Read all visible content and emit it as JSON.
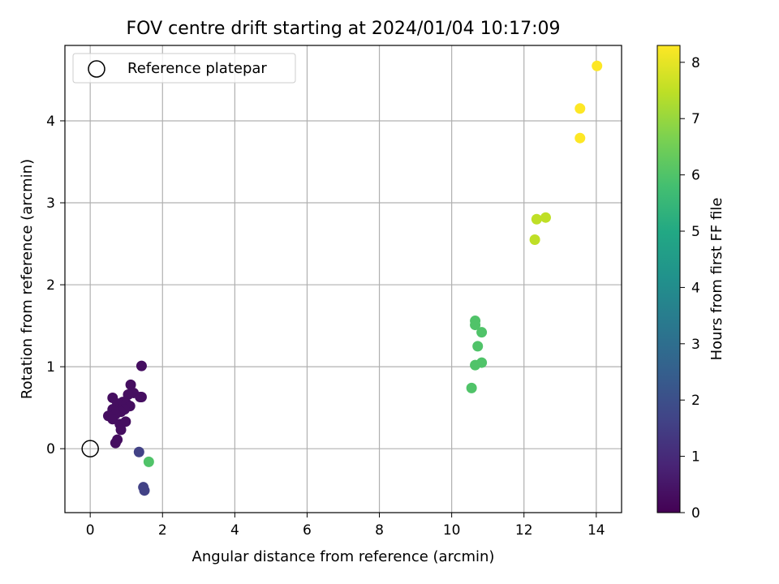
{
  "chart_data": {
    "type": "scatter",
    "title": "FOV centre drift starting at 2024/01/04 10:17:09",
    "xlabel": "Angular distance from reference (arcmin)",
    "ylabel": "Rotation from reference (arcmin)",
    "xlim": [
      -0.7,
      14.7
    ],
    "ylim": [
      -0.78,
      4.92
    ],
    "xticks": [
      0,
      2,
      4,
      6,
      8,
      10,
      12,
      14
    ],
    "yticks": [
      0,
      1,
      2,
      3,
      4
    ],
    "grid": true,
    "legend": {
      "placement": "upper-left",
      "entries": [
        {
          "label": "Reference platepar",
          "marker": "hollow-circle"
        }
      ]
    },
    "reference_point": {
      "x": 0,
      "y": 0
    },
    "colorbar": {
      "label": "Hours from first FF file",
      "colormap": "viridis",
      "range": [
        0,
        8.3
      ],
      "ticks": [
        0,
        1,
        2,
        3,
        4,
        5,
        6,
        7,
        8
      ]
    },
    "points": [
      {
        "x": 1.42,
        "y": 1.01,
        "t": 0.3
      },
      {
        "x": 0.62,
        "y": 0.62,
        "t": 0.3
      },
      {
        "x": 1.12,
        "y": 0.78,
        "t": 0.3
      },
      {
        "x": 1.2,
        "y": 0.68,
        "t": 0.3
      },
      {
        "x": 1.05,
        "y": 0.66,
        "t": 0.3
      },
      {
        "x": 1.38,
        "y": 0.63,
        "t": 0.3
      },
      {
        "x": 1.42,
        "y": 0.63,
        "t": 0.3
      },
      {
        "x": 0.75,
        "y": 0.55,
        "t": 0.3
      },
      {
        "x": 0.9,
        "y": 0.57,
        "t": 0.3
      },
      {
        "x": 1.0,
        "y": 0.55,
        "t": 0.3
      },
      {
        "x": 1.1,
        "y": 0.52,
        "t": 0.3
      },
      {
        "x": 0.95,
        "y": 0.48,
        "t": 0.3
      },
      {
        "x": 0.85,
        "y": 0.45,
        "t": 0.3
      },
      {
        "x": 0.62,
        "y": 0.48,
        "t": 0.3
      },
      {
        "x": 0.7,
        "y": 0.42,
        "t": 0.3
      },
      {
        "x": 0.5,
        "y": 0.4,
        "t": 0.3
      },
      {
        "x": 0.62,
        "y": 0.36,
        "t": 0.3
      },
      {
        "x": 0.82,
        "y": 0.3,
        "t": 0.3
      },
      {
        "x": 0.98,
        "y": 0.33,
        "t": 0.3
      },
      {
        "x": 0.85,
        "y": 0.23,
        "t": 0.3
      },
      {
        "x": 0.75,
        "y": 0.11,
        "t": 0.3
      },
      {
        "x": 0.7,
        "y": 0.07,
        "t": 0.3
      },
      {
        "x": 1.35,
        "y": -0.04,
        "t": 1.6
      },
      {
        "x": 1.47,
        "y": -0.47,
        "t": 1.6
      },
      {
        "x": 1.5,
        "y": -0.51,
        "t": 1.6
      },
      {
        "x": 1.62,
        "y": -0.16,
        "t": 6.0
      },
      {
        "x": 10.65,
        "y": 1.56,
        "t": 6.0
      },
      {
        "x": 10.65,
        "y": 1.51,
        "t": 6.0
      },
      {
        "x": 10.83,
        "y": 1.42,
        "t": 6.0
      },
      {
        "x": 10.72,
        "y": 1.25,
        "t": 6.0
      },
      {
        "x": 10.83,
        "y": 1.05,
        "t": 6.0
      },
      {
        "x": 10.65,
        "y": 1.02,
        "t": 6.0
      },
      {
        "x": 10.55,
        "y": 0.74,
        "t": 6.0
      },
      {
        "x": 12.35,
        "y": 2.8,
        "t": 7.5
      },
      {
        "x": 12.6,
        "y": 2.82,
        "t": 7.5
      },
      {
        "x": 12.3,
        "y": 2.55,
        "t": 7.5
      },
      {
        "x": 13.55,
        "y": 4.15,
        "t": 8.3
      },
      {
        "x": 14.02,
        "y": 4.67,
        "t": 8.3
      },
      {
        "x": 13.55,
        "y": 3.79,
        "t": 8.3
      }
    ]
  }
}
